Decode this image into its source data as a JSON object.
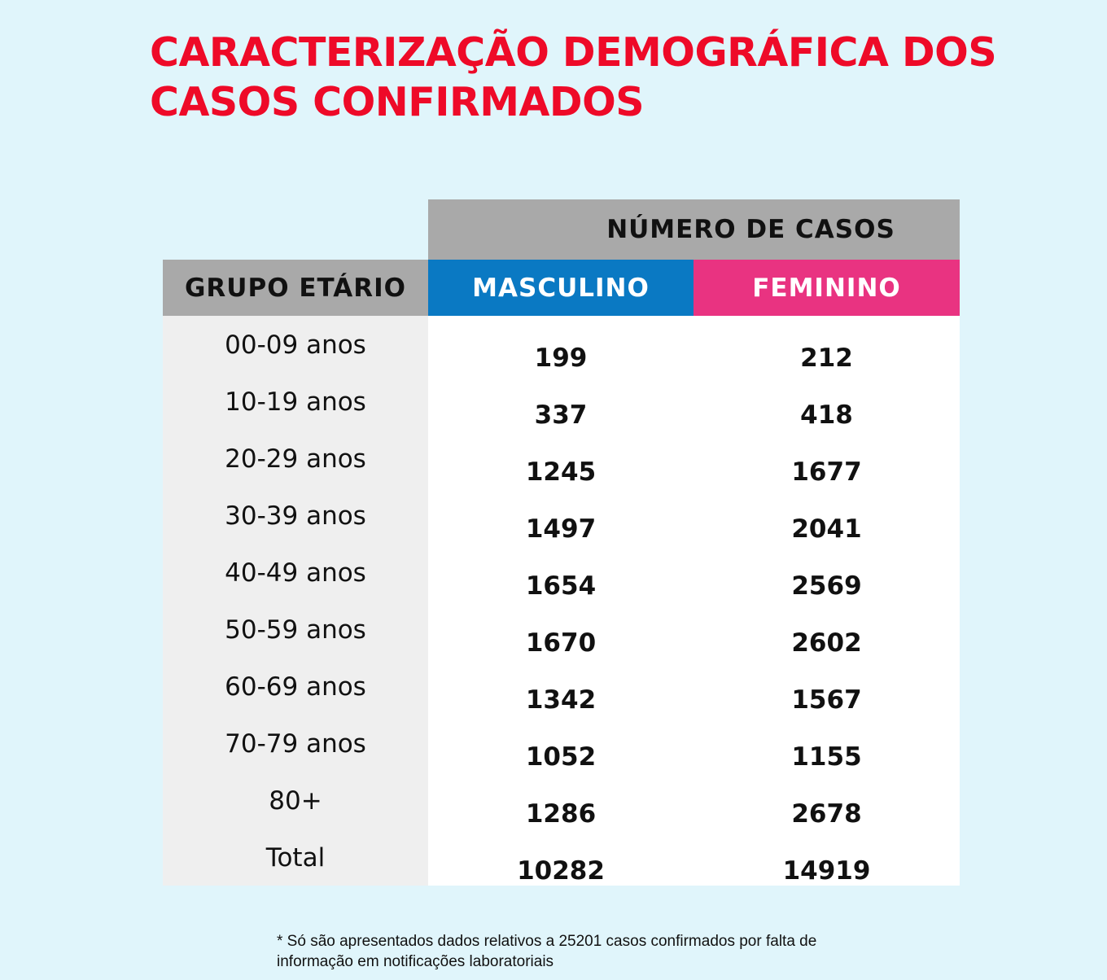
{
  "title": {
    "line1": "CARACTERIZAÇÃO DEMOGRÁFICA DOS",
    "line2": "CASOS CONFIRMADOS"
  },
  "table": {
    "super_header": "NÚMERO DE CASOS",
    "col_group": "GRUPO ETÁRIO",
    "col_male": "MASCULINO",
    "col_female": "FEMININO",
    "rows": [
      {
        "group": "00-09 anos",
        "male": "199",
        "female": "212"
      },
      {
        "group": "10-19 anos",
        "male": "337",
        "female": "418"
      },
      {
        "group": "20-29 anos",
        "male": "1245",
        "female": "1677"
      },
      {
        "group": "30-39 anos",
        "male": "1497",
        "female": "2041"
      },
      {
        "group": "40-49 anos",
        "male": "1654",
        "female": "2569"
      },
      {
        "group": "50-59 anos",
        "male": "1670",
        "female": "2602"
      },
      {
        "group": "60-69 anos",
        "male": "1342",
        "female": "1567"
      },
      {
        "group": "70-79 anos",
        "male": "1052",
        "female": "1155"
      },
      {
        "group": "80+",
        "male": "1286",
        "female": "2678"
      },
      {
        "group": "Total",
        "male": "10282",
        "female": "14919"
      }
    ]
  },
  "footnote": {
    "line1": "* Só são apresentados dados relativos a 25201 casos confirmados por falta de",
    "line2": "informação em notificações laboratoriais"
  },
  "colors": {
    "background": "#e0f5fb",
    "title": "#ee0a28",
    "header_gray": "#a9a9a9",
    "male": "#0a79c3",
    "female": "#e93381"
  }
}
